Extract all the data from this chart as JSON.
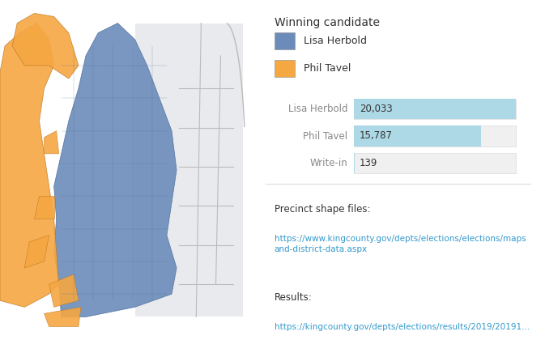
{
  "title_legend": "Winning candidate",
  "legend_items": [
    {
      "label": "Lisa Herbold",
      "color": "#6b8cba"
    },
    {
      "label": "Phil Tavel",
      "color": "#f5a742"
    }
  ],
  "bar_candidates": [
    "Lisa Herbold",
    "Phil Tavel",
    "Write-in"
  ],
  "bar_values": [
    20033,
    15787,
    139
  ],
  "bar_labels": [
    "20,033",
    "15,787",
    "139"
  ],
  "bar_color": "#add8e6",
  "bar_max": 20033,
  "label_color": "#888888",
  "value_color": "#333333",
  "background_color": "#ffffff",
  "map_bg": "#e8e8e8",
  "map_border": "#cccccc",
  "blue_color": "#6b8cba",
  "orange_color": "#f5a742",
  "outline_color": "#4a6a9a"
}
